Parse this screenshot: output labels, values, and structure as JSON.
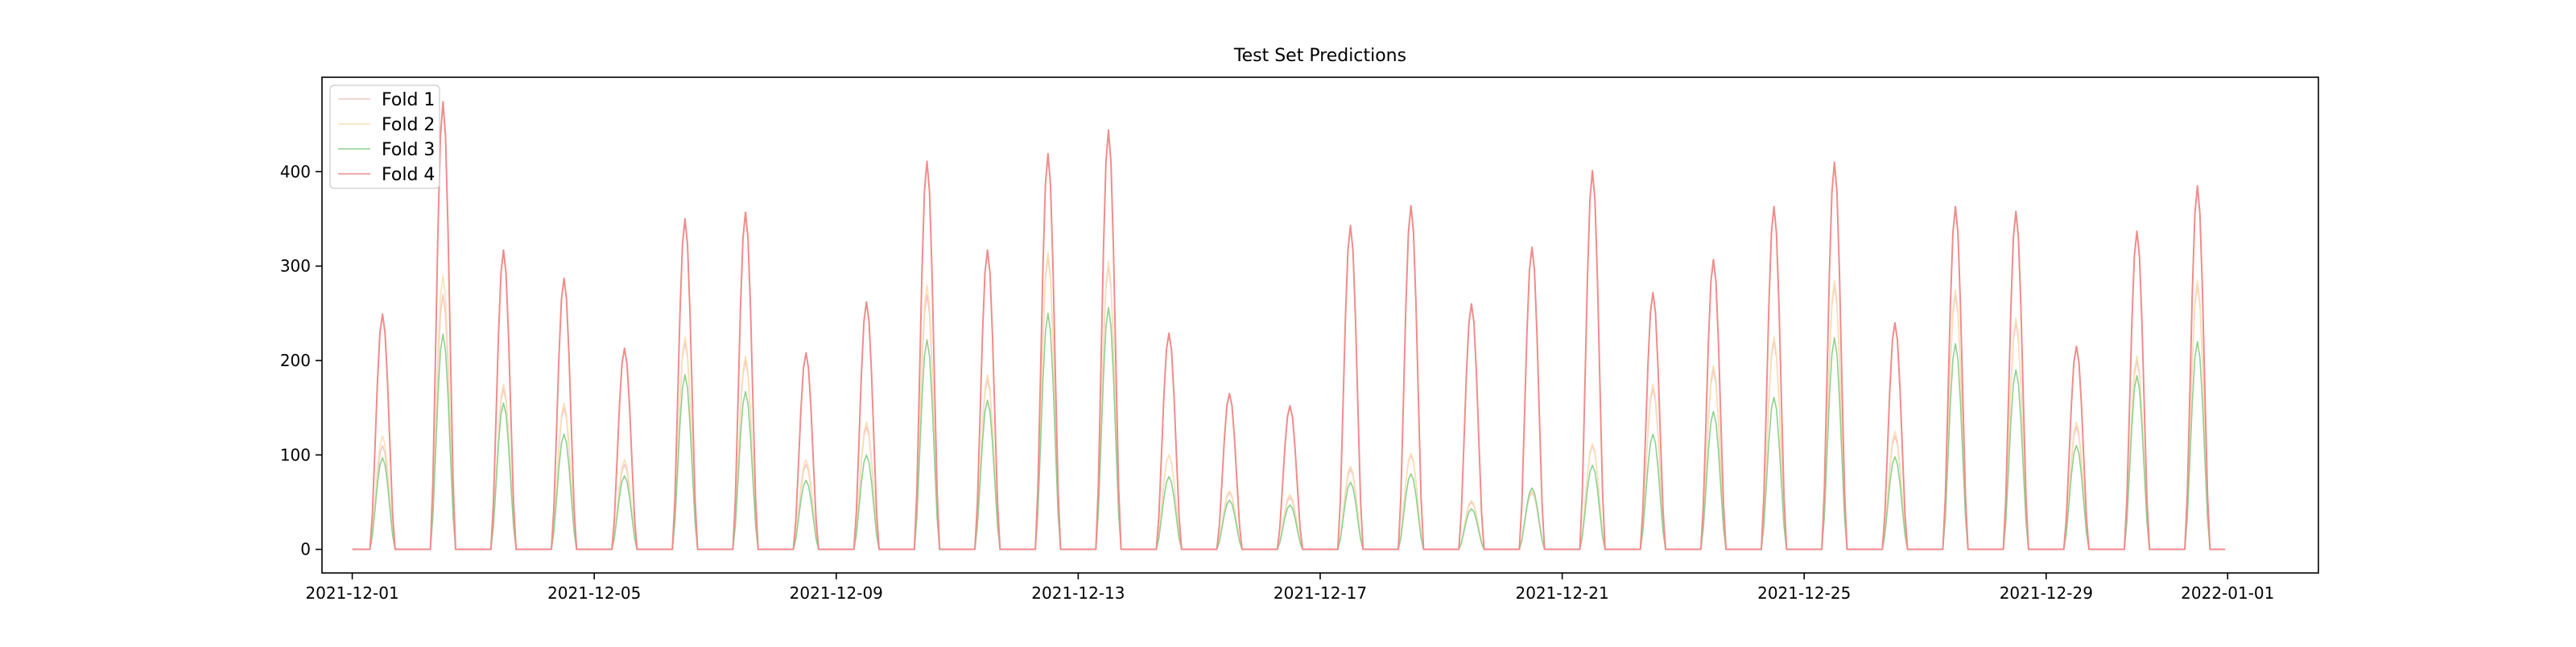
{
  "chart_data": {
    "type": "line",
    "title": "Test Set Predictions",
    "xlabel": "",
    "ylabel": "",
    "x_range": [
      "2021-11-30 12:00",
      "2022-01-02 12:00"
    ],
    "ylim": [
      -25,
      500
    ],
    "x_ticks": [
      "2021-12-01",
      "2021-12-05",
      "2021-12-09",
      "2021-12-13",
      "2021-12-17",
      "2021-12-21",
      "2021-12-25",
      "2021-12-29",
      "2022-01-01"
    ],
    "y_ticks": [
      0,
      100,
      200,
      300,
      400
    ],
    "grid": false,
    "legend_position": "top-left",
    "day_shape_note": "values are the daily peak prediction; each day rises from 0 around 07:00, peaks near midday and returns to 0 around 17:00",
    "days": [
      "2021-12-01",
      "2021-12-02",
      "2021-12-03",
      "2021-12-04",
      "2021-12-05",
      "2021-12-06",
      "2021-12-07",
      "2021-12-08",
      "2021-12-09",
      "2021-12-10",
      "2021-12-11",
      "2021-12-12",
      "2021-12-13",
      "2021-12-14",
      "2021-12-15",
      "2021-12-16",
      "2021-12-17",
      "2021-12-18",
      "2021-12-19",
      "2021-12-20",
      "2021-12-21",
      "2021-12-22",
      "2021-12-23",
      "2021-12-24",
      "2021-12-25",
      "2021-12-26",
      "2021-12-27",
      "2021-12-28",
      "2021-12-29",
      "2021-12-30",
      "2021-12-31"
    ],
    "series": [
      {
        "name": "Fold 1",
        "color": "#f4c7c7",
        "values": [
          110,
          270,
          170,
          150,
          90,
          220,
          200,
          90,
          130,
          270,
          180,
          310,
          300,
          100,
          60,
          55,
          85,
          100,
          50,
          60,
          110,
          170,
          190,
          220,
          280,
          120,
          270,
          240,
          130,
          200,
          280
        ]
      },
      {
        "name": "Fold 2",
        "color": "#fbe0b8",
        "values": [
          120,
          290,
          175,
          155,
          95,
          225,
          205,
          95,
          135,
          280,
          185,
          315,
          305,
          100,
          62,
          58,
          88,
          102,
          52,
          62,
          112,
          175,
          195,
          225,
          285,
          125,
          275,
          245,
          135,
          205,
          285
        ]
      },
      {
        "name": "Fold 3",
        "color": "#8fd18f",
        "values": [
          97,
          228,
          155,
          122,
          78,
          185,
          167,
          73,
          100,
          222,
          158,
          250,
          256,
          77,
          52,
          47,
          71,
          80,
          43,
          65,
          89,
          122,
          146,
          161,
          224,
          98,
          218,
          190,
          110,
          184,
          220
        ]
      },
      {
        "name": "Fold 4",
        "color": "#f08c8c",
        "values": [
          249,
          474,
          317,
          287,
          213,
          350,
          357,
          208,
          262,
          411,
          317,
          419,
          444,
          229,
          165,
          152,
          343,
          364,
          260,
          320,
          401,
          272,
          307,
          363,
          410,
          240,
          363,
          358,
          215,
          337,
          385
        ]
      }
    ]
  }
}
